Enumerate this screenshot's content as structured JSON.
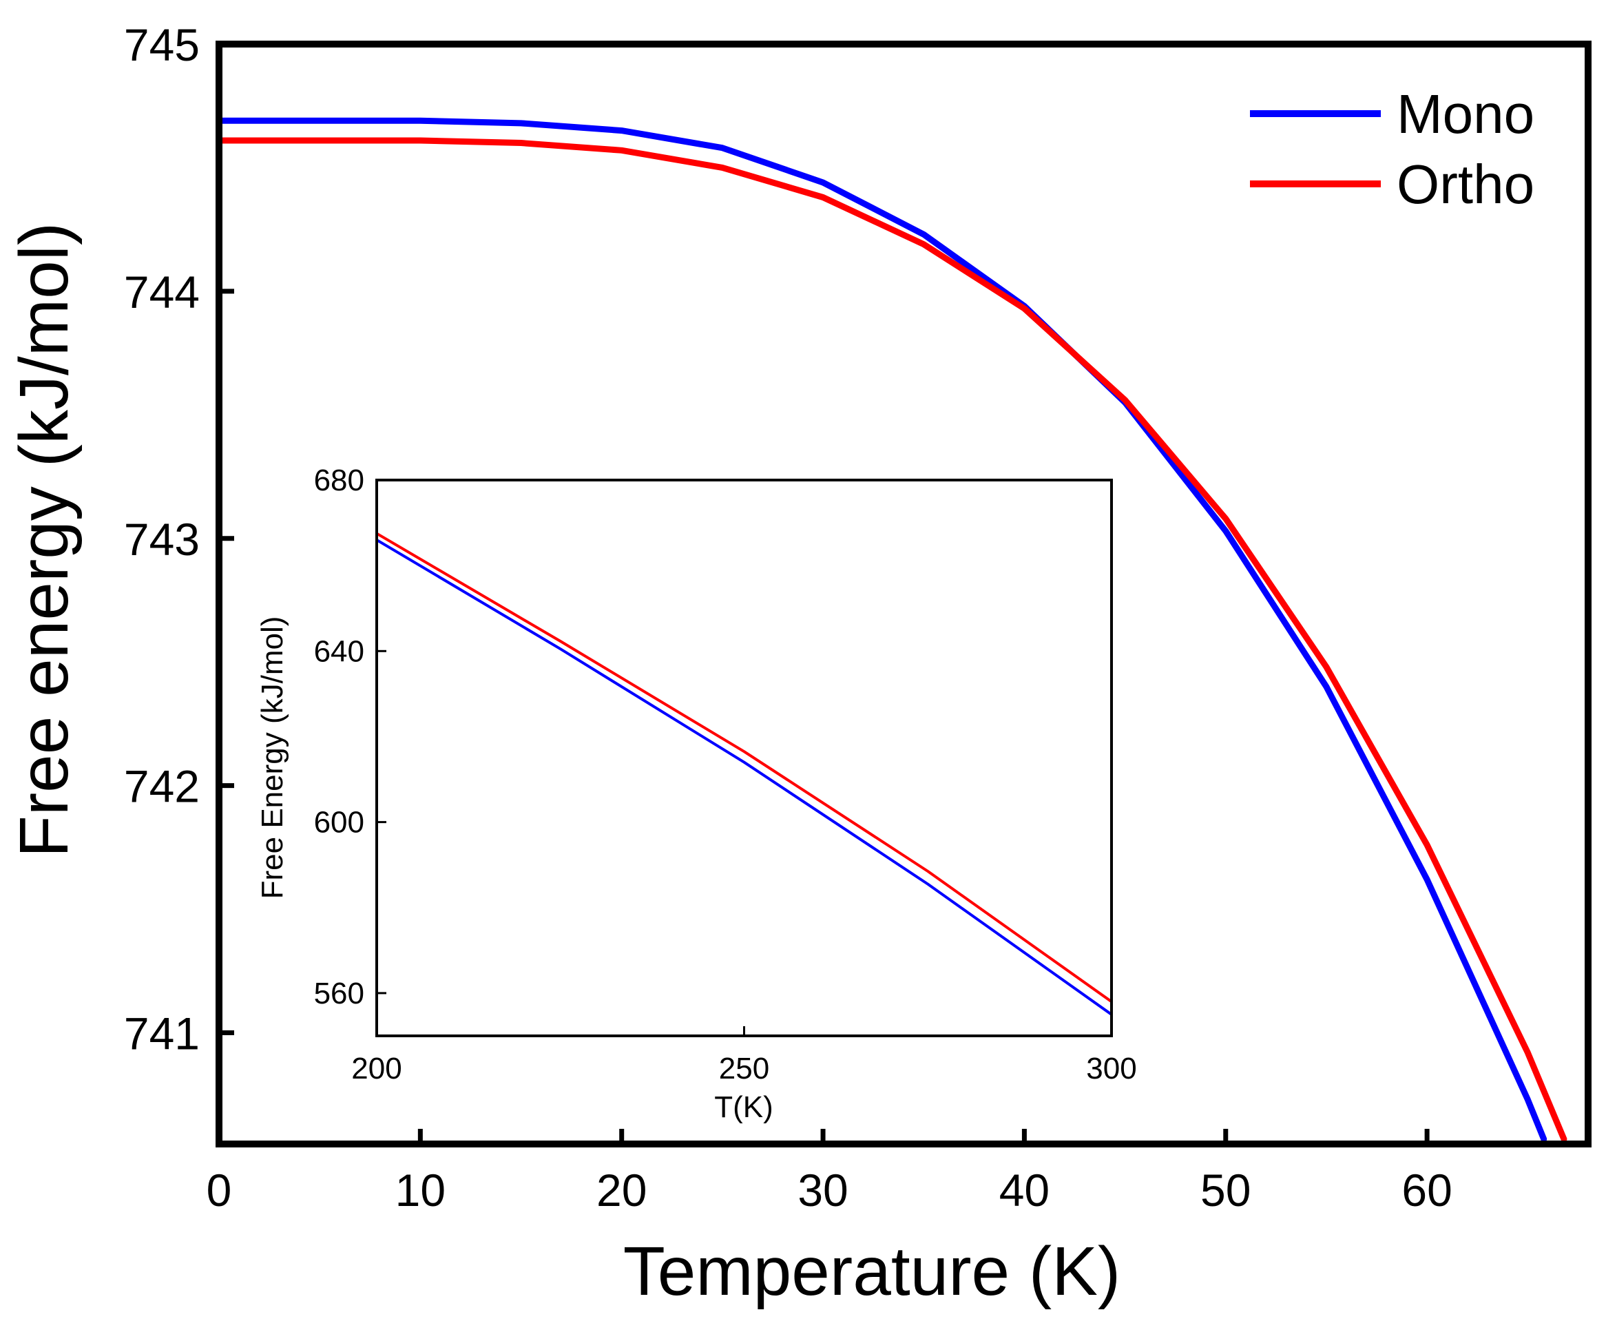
{
  "chart_data": [
    {
      "type": "line",
      "xlabel": "Temperature (K)",
      "ylabel": "Free energy (kJ/mol)",
      "xlim": [
        0,
        68
      ],
      "ylim": [
        740.55,
        745
      ],
      "xticks": [
        0,
        10,
        20,
        30,
        40,
        50,
        60
      ],
      "yticks": [
        741,
        742,
        743,
        744,
        745
      ],
      "legend": "top-right",
      "series": [
        {
          "name": "Mono",
          "color": "#0000ff",
          "x": [
            0,
            5,
            10,
            15,
            20,
            25,
            30,
            35,
            40,
            45,
            50,
            55,
            60,
            65,
            65.8
          ],
          "y": [
            744.69,
            744.69,
            744.69,
            744.68,
            744.65,
            744.58,
            744.44,
            744.23,
            743.94,
            743.55,
            743.03,
            742.4,
            741.62,
            740.73,
            740.57
          ]
        },
        {
          "name": "Ortho",
          "color": "#ff0000",
          "x": [
            0,
            5,
            10,
            15,
            20,
            25,
            30,
            35,
            40,
            45,
            50,
            55,
            60,
            65,
            66.8
          ],
          "y": [
            744.61,
            744.61,
            744.61,
            744.6,
            744.57,
            744.5,
            744.38,
            744.19,
            743.93,
            743.56,
            743.08,
            742.48,
            741.76,
            740.92,
            740.57
          ]
        }
      ]
    },
    {
      "type": "line",
      "xlabel": "T(K)",
      "ylabel": "Free Energy (kJ/mol)",
      "xlim": [
        200,
        300
      ],
      "ylim": [
        550,
        680
      ],
      "xticks": [
        200,
        250,
        300
      ],
      "yticks": [
        560,
        600,
        640,
        680
      ],
      "series": [
        {
          "color": "#0000ff",
          "x": [
            200,
            225,
            250,
            275,
            300
          ],
          "y": [
            666,
            640.5,
            614,
            585.5,
            555
          ]
        },
        {
          "color": "#ff0000",
          "x": [
            200,
            225,
            250,
            275,
            300
          ],
          "y": [
            667.5,
            642.3,
            616.5,
            588.5,
            558
          ]
        }
      ]
    }
  ]
}
